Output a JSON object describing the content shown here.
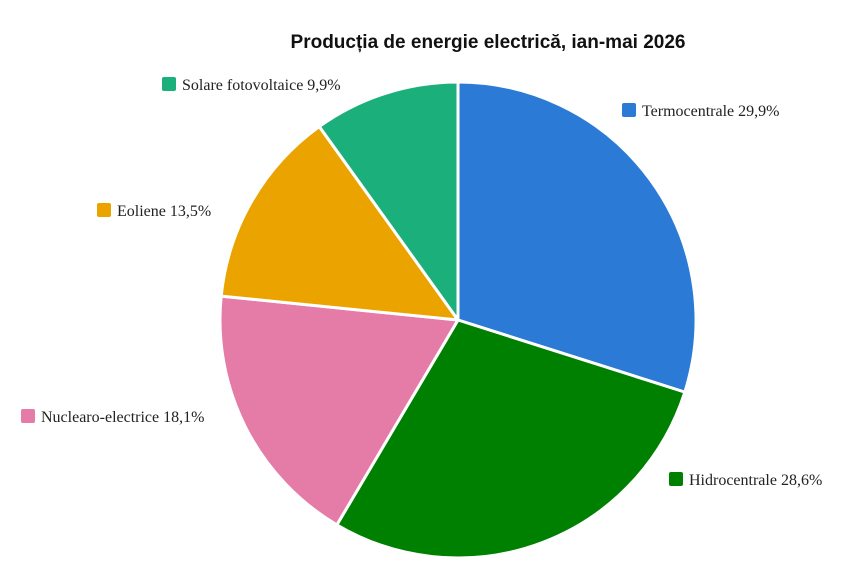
{
  "chart_data": {
    "type": "pie",
    "title": "Producția de energie electrică, ian-mai 2026",
    "slices": [
      {
        "label": "Termocentrale",
        "value": 29.9,
        "display": "Termocentrale 29,9%",
        "color": "#2b7bd6"
      },
      {
        "label": "Hidrocentrale",
        "value": 28.6,
        "display": "Hidrocentrale 28,6%",
        "color": "#008000"
      },
      {
        "label": "Nuclearo-electrice",
        "value": 18.1,
        "display": "Nuclearo-electrice 18,1%",
        "color": "#e57ba7"
      },
      {
        "label": "Eoliene",
        "value": 13.5,
        "display": "Eoliene 13,5%",
        "color": "#eba300"
      },
      {
        "label": "Solare fotovoltaice",
        "value": 9.9,
        "display": "Solare fotovoltaice 9,9%",
        "color": "#1bb07b"
      }
    ],
    "legend": "labels-around-pie"
  }
}
